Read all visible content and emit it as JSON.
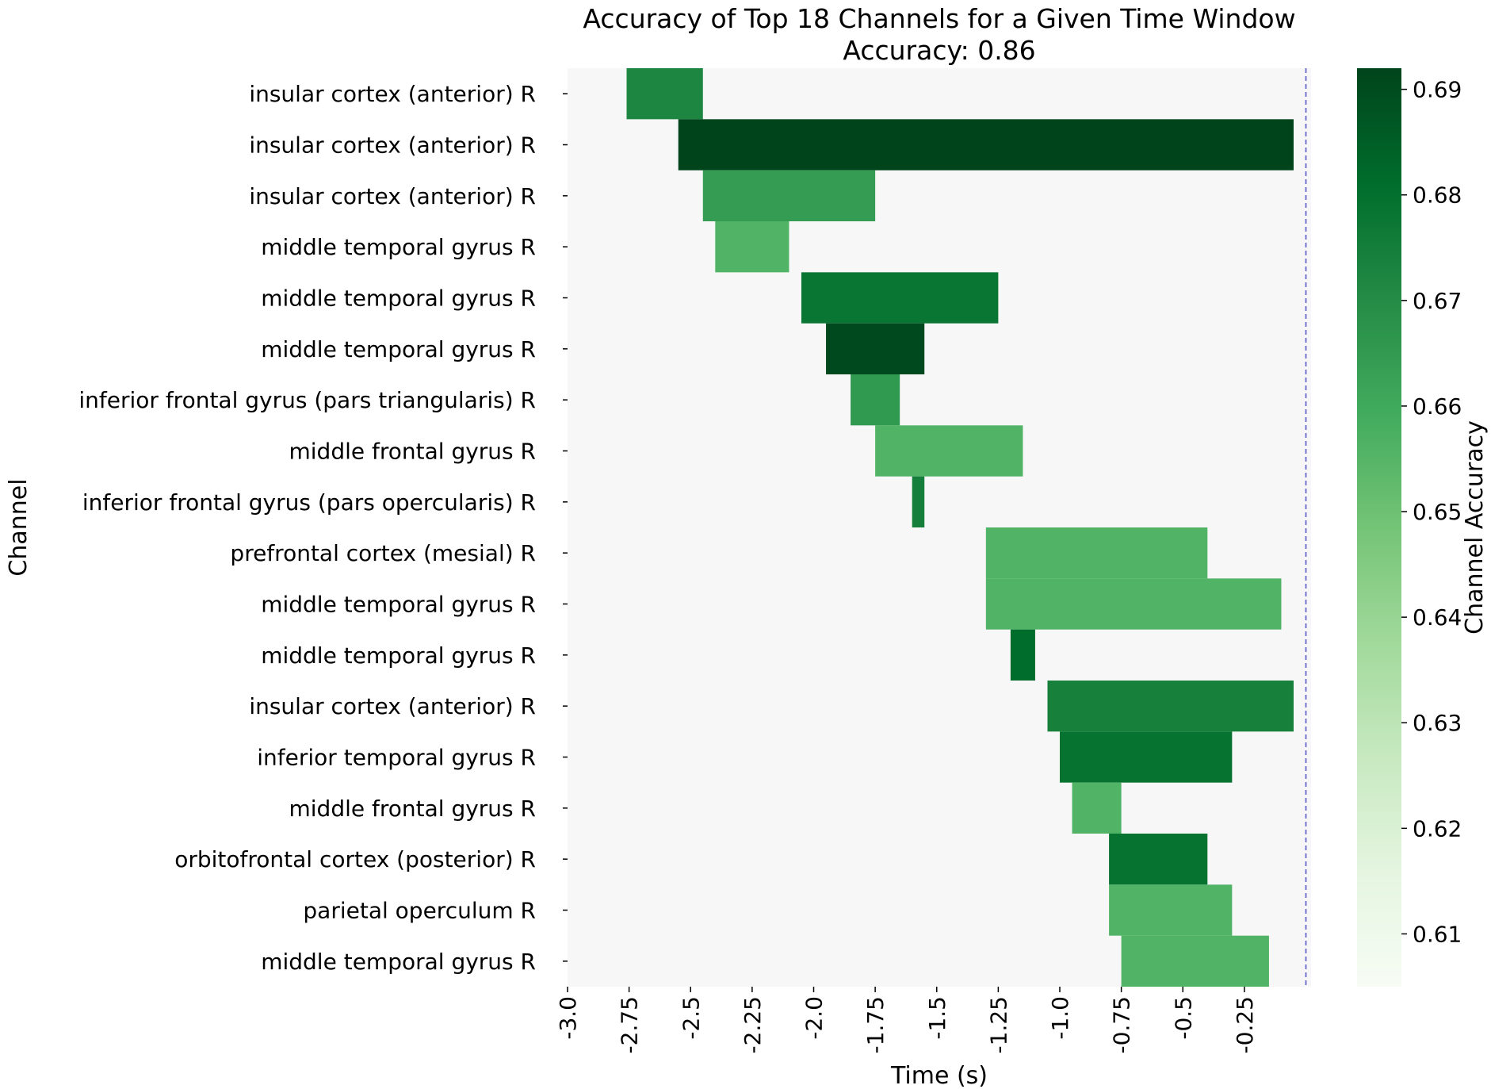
{
  "chart_data": {
    "type": "heatmap",
    "title": "Accuracy of Top 18 Channels for a Given Time Window",
    "subtitle": "Accuracy: 0.86",
    "xlabel": "Time (s)",
    "ylabel": "Channel",
    "colorbar_label": "Channel Accuracy",
    "xlim": [
      -3.0,
      0.0
    ],
    "x_ticks": [
      -3.0,
      -2.75,
      -2.5,
      -2.25,
      -2.0,
      -1.75,
      -1.5,
      -1.25,
      -1.0,
      -0.75,
      -0.5,
      -0.25
    ],
    "x_tick_labels": [
      "-3.0",
      "-2.75",
      "-2.5",
      "-2.25",
      "-2.0",
      "-1.75",
      "-1.5",
      "-1.25",
      "-1.0",
      "-0.75",
      "-0.5",
      "-0.25"
    ],
    "colorbar_range": [
      0.605,
      0.692
    ],
    "colorbar_ticks": [
      0.61,
      0.62,
      0.63,
      0.64,
      0.65,
      0.66,
      0.67,
      0.68,
      0.69
    ],
    "colorbar_tick_labels": [
      "0.61",
      "0.62",
      "0.63",
      "0.64",
      "0.65",
      "0.66",
      "0.67",
      "0.68",
      "0.69"
    ],
    "colormap": "Greens",
    "background_color": "#f7f7f7",
    "reference_line": {
      "x": 0.0,
      "style": "dashed",
      "color": "#6666cc"
    },
    "channels": [
      {
        "label": "insular cortex (anterior) R",
        "start": -2.76,
        "end": -2.45,
        "accuracy": 0.672
      },
      {
        "label": "insular cortex (anterior) R",
        "start": -2.55,
        "end": -0.05,
        "accuracy": 0.692
      },
      {
        "label": "insular cortex (anterior) R",
        "start": -2.45,
        "end": -1.75,
        "accuracy": 0.664
      },
      {
        "label": "middle temporal gyrus R",
        "start": -2.4,
        "end": -2.1,
        "accuracy": 0.656
      },
      {
        "label": "middle temporal gyrus R",
        "start": -2.05,
        "end": -1.25,
        "accuracy": 0.678
      },
      {
        "label": "middle temporal gyrus R",
        "start": -1.95,
        "end": -1.55,
        "accuracy": 0.691
      },
      {
        "label": "inferior frontal gyrus (pars triangularis) R",
        "start": -1.85,
        "end": -1.65,
        "accuracy": 0.665
      },
      {
        "label": "middle frontal gyrus R",
        "start": -1.75,
        "end": -1.15,
        "accuracy": 0.656
      },
      {
        "label": "inferior frontal gyrus (pars opercularis) R",
        "start": -1.6,
        "end": -1.55,
        "accuracy": 0.675
      },
      {
        "label": "prefrontal cortex (mesial) R",
        "start": -1.3,
        "end": -0.4,
        "accuracy": 0.656
      },
      {
        "label": "middle temporal gyrus R",
        "start": -1.3,
        "end": -0.1,
        "accuracy": 0.656
      },
      {
        "label": "middle temporal gyrus R",
        "start": -1.2,
        "end": -1.1,
        "accuracy": 0.681
      },
      {
        "label": "insular cortex (anterior) R",
        "start": -1.05,
        "end": -0.05,
        "accuracy": 0.674
      },
      {
        "label": "inferior temporal gyrus R",
        "start": -1.0,
        "end": -0.3,
        "accuracy": 0.679
      },
      {
        "label": "middle frontal gyrus R",
        "start": -0.95,
        "end": -0.75,
        "accuracy": 0.656
      },
      {
        "label": "orbitofrontal cortex (posterior) R",
        "start": -0.8,
        "end": -0.4,
        "accuracy": 0.679
      },
      {
        "label": "parietal operculum R",
        "start": -0.8,
        "end": -0.3,
        "accuracy": 0.656
      },
      {
        "label": "middle temporal gyrus R",
        "start": -0.75,
        "end": -0.15,
        "accuracy": 0.656
      }
    ]
  }
}
